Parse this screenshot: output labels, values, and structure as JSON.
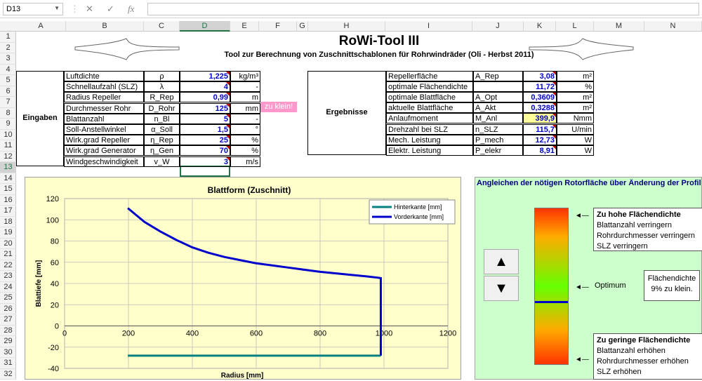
{
  "formula_bar": {
    "name_box": "D13",
    "fx": "fx",
    "content": ""
  },
  "columns": [
    "A",
    "B",
    "C",
    "D",
    "E",
    "F",
    "G",
    "H",
    "I",
    "J",
    "K",
    "L",
    "M",
    "N"
  ],
  "rows": [
    "1",
    "2",
    "3",
    "4",
    "5",
    "6",
    "7",
    "8",
    "9",
    "10",
    "11",
    "12",
    "13",
    "14",
    "15",
    "16",
    "17",
    "18",
    "19",
    "20",
    "21",
    "22",
    "23",
    "24",
    "25",
    "26",
    "27",
    "28",
    "29",
    "30",
    "31",
    "32"
  ],
  "header": {
    "title": "RoWi-Tool III",
    "subtitle": "Tool zur Berechnung von Zuschnittschablonen für Rohrwindräder (Oli - Herbst 2011)"
  },
  "inputs": {
    "label": "Eingaben",
    "warning": "zu klein!",
    "rows": [
      {
        "name": "Luftdichte",
        "sym": "ρ",
        "value": "1,225",
        "unit": "kg/m³"
      },
      {
        "name": "Schnellaufzahl (SLZ)",
        "sym": "λ",
        "value": "4",
        "unit": "-"
      },
      {
        "name": "Radius Repeller",
        "sym": "R_Rep",
        "value": "0,99",
        "unit": "m"
      },
      {
        "name": "Durchmesser Rohr",
        "sym": "D_Rohr",
        "value": "125",
        "unit": "mm"
      },
      {
        "name": "Blattanzahl",
        "sym": "n_Bl",
        "value": "5",
        "unit": "-"
      },
      {
        "name": "Soll-Anstellwinkel",
        "sym": "α_Soll",
        "value": "1,5",
        "unit": "°"
      },
      {
        "name": "Wirk.grad Repeller",
        "sym": "η_Rep",
        "value": "25",
        "unit": "%"
      },
      {
        "name": "Wirk.grad Generator",
        "sym": "η_Gen",
        "value": "70",
        "unit": "%"
      },
      {
        "name": "Windgeschwindigkeit",
        "sym": "v_W",
        "value": "3",
        "unit": "m/s"
      }
    ]
  },
  "results": {
    "label": "Ergebnisse",
    "rows": [
      {
        "name": "Repellerfläche",
        "sym": "A_Rep",
        "value": "3,08",
        "unit": "m²"
      },
      {
        "name": "optimale Flächendichte",
        "sym": "",
        "value": "11,72",
        "unit": "%"
      },
      {
        "name": "optimale Blattfläche",
        "sym": "A_Opt",
        "value": "0,3609",
        "unit": "m²"
      },
      {
        "name": "aktuelle Blattfläche",
        "sym": "A_Akt",
        "value": "0,3288",
        "unit": "m²"
      },
      {
        "name": "Anlaufmoment",
        "sym": "M_Anl",
        "value": "399,9",
        "unit": "Nmm"
      },
      {
        "name": "Drehzahl bei SLZ",
        "sym": "n_SLZ",
        "value": "115,7",
        "unit": "U/min"
      },
      {
        "name": "Mech. Leistung",
        "sym": "P_mech",
        "value": "12,73",
        "unit": "W"
      },
      {
        "name": "Elektr. Leistung",
        "sym": "P_elekr",
        "value": "8,91",
        "unit": "W"
      }
    ]
  },
  "chart_data": {
    "type": "line",
    "title": "Blattform (Zuschnitt)",
    "xlabel": "Radius [mm]",
    "ylabel": "Blattiefe [mm]",
    "xlim": [
      0,
      1200
    ],
    "ylim": [
      -40,
      120
    ],
    "xticks": [
      "0",
      "200",
      "400",
      "600",
      "800",
      "1000",
      "1200"
    ],
    "yticks": [
      "120",
      "100",
      "80",
      "60",
      "40",
      "20",
      "0",
      "-20",
      "-40"
    ],
    "legend_position": "top-right",
    "series": [
      {
        "name": "Hinterkante [mm]",
        "color": "#008080",
        "x": [
          198,
          990
        ],
        "y": [
          -28,
          -28
        ]
      },
      {
        "name": "Vorderkante [mm]",
        "color": "#0000cc",
        "x": [
          198,
          250,
          300,
          350,
          400,
          450,
          500,
          550,
          600,
          650,
          700,
          750,
          800,
          850,
          900,
          950,
          980,
          990,
          990,
          990
        ],
        "y": [
          111,
          98,
          89,
          81,
          74,
          69,
          65,
          62,
          59,
          57,
          55,
          53,
          51,
          49.5,
          48,
          46.5,
          45.5,
          45,
          0,
          -28
        ]
      }
    ]
  },
  "panel": {
    "title": "Angleichen der nötigen Rotorfläche über Änderung der Profil",
    "arrow": "◄—",
    "top_heading": "Zu hohe Flächendichte",
    "top_lines": [
      "Blattanzahl verringern",
      "Rohrdurchmesser verringern",
      "SLZ verringern"
    ],
    "mid_label": "Optimum",
    "status_line1": "Flächendichte",
    "status_line2": "9% zu klein.",
    "bottom_heading": "Zu geringe Flächendichte",
    "bottom_lines": [
      "Blattanzahl erhöhen",
      "Rohrdurchmesser erhöhen",
      "SLZ erhöhen"
    ],
    "gauge_level": 0.4,
    "up_icon": "▲",
    "down_icon": "▼"
  }
}
